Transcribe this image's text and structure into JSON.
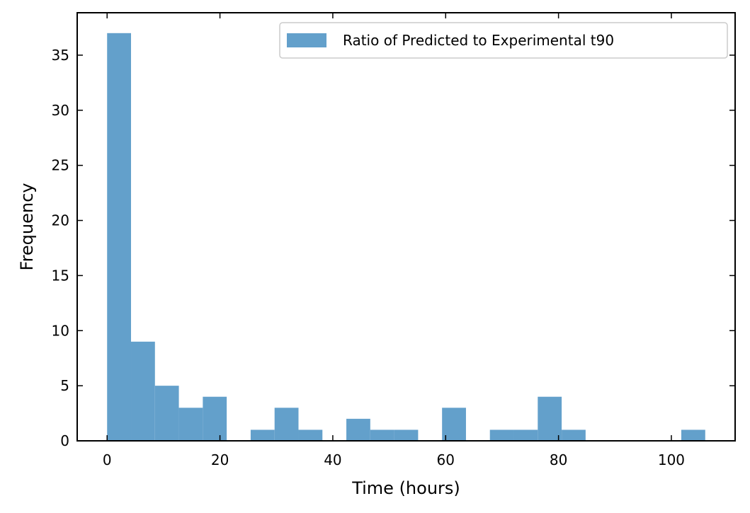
{
  "chart_data": {
    "type": "bar",
    "title": "",
    "xlabel": "Time (hours)",
    "ylabel": "Frequency",
    "xlim": [
      -5.3,
      111.3
    ],
    "ylim": [
      0,
      38.85
    ],
    "bin_edges": [
      0.0,
      4.24,
      8.48,
      12.72,
      16.96,
      21.2,
      25.44,
      29.68,
      33.92,
      38.16,
      42.4,
      46.64,
      50.88,
      55.12,
      59.36,
      63.6,
      67.84,
      72.08,
      76.32,
      80.56,
      84.8,
      89.04,
      93.28,
      97.52,
      101.76,
      106.0
    ],
    "series": [
      {
        "name": "Ratio of Predicted to Experimental t90",
        "color": "#63a0cb",
        "values": [
          37,
          9,
          5,
          3,
          4,
          0,
          1,
          3,
          1,
          0,
          2,
          1,
          1,
          0,
          3,
          0,
          1,
          1,
          4,
          1,
          0,
          0,
          0,
          0,
          1
        ]
      }
    ],
    "xticks": [
      0,
      20,
      40,
      60,
      80,
      100
    ],
    "yticks": [
      0,
      5,
      10,
      15,
      20,
      25,
      30,
      35
    ],
    "xtick_labels": [
      "0",
      "20",
      "40",
      "60",
      "80",
      "100"
    ],
    "ytick_labels": [
      "0",
      "5",
      "10",
      "15",
      "20",
      "25",
      "30",
      "35"
    ],
    "legend_position": "top-right",
    "tick_direction": "in",
    "grid": false
  }
}
